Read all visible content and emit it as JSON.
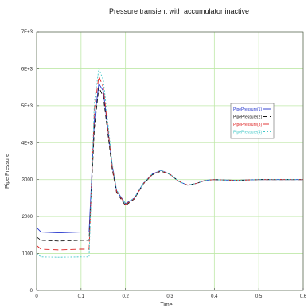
{
  "chart_data": {
    "type": "line",
    "title": "Pressure transient with accumulator inactive",
    "xlabel": "Time",
    "ylabel": "Pipe Pressure",
    "xlim": [
      0,
      0.6
    ],
    "ylim": [
      0,
      7000
    ],
    "x_ticks": [
      0,
      0.1,
      0.2,
      0.3,
      0.4,
      0.5,
      0.6
    ],
    "x_tick_labels": [
      "0",
      "0.1",
      "0.2",
      "0.3",
      "0.4",
      "0.5",
      "0.6"
    ],
    "y_ticks": [
      0,
      1000,
      2000,
      3000,
      4000,
      5000,
      6000,
      7000
    ],
    "y_tick_labels": [
      "0",
      "1000",
      "2000",
      "3000",
      "4E+3",
      "5E+3",
      "6E+3",
      "7E+3"
    ],
    "grid": true,
    "grid_color": "#bfe8a8",
    "legend_position": "right",
    "x": [
      0,
      0.01,
      0.05,
      0.1,
      0.118,
      0.13,
      0.14,
      0.15,
      0.16,
      0.17,
      0.18,
      0.2,
      0.22,
      0.24,
      0.26,
      0.28,
      0.3,
      0.32,
      0.34,
      0.36,
      0.38,
      0.4,
      0.42,
      0.45,
      0.5,
      0.55,
      0.6
    ],
    "series": [
      {
        "name": "PipePressure(1)",
        "color": "#2233cc",
        "dash": "",
        "values": [
          1700,
          1580,
          1560,
          1580,
          1580,
          4600,
          5600,
          5400,
          4400,
          3400,
          2700,
          2350,
          2500,
          2900,
          3150,
          3250,
          3150,
          2950,
          2850,
          2900,
          2980,
          3000,
          2990,
          2980,
          3000,
          3000,
          3000
        ]
      },
      {
        "name": "PipePressure(2)",
        "color": "#111111",
        "dash": "5 3",
        "values": [
          1450,
          1360,
          1340,
          1360,
          1360,
          4400,
          5500,
          5250,
          4300,
          3300,
          2650,
          2300,
          2480,
          2880,
          3130,
          3230,
          3140,
          2950,
          2850,
          2900,
          2980,
          3000,
          2990,
          2980,
          3000,
          3000,
          3000
        ]
      },
      {
        "name": "PipePressure(3)",
        "color": "#dd2222",
        "dash": "7 4",
        "values": [
          1220,
          1120,
          1100,
          1120,
          1120,
          4900,
          5800,
          5500,
          4450,
          3380,
          2680,
          2330,
          2490,
          2890,
          3140,
          3240,
          3150,
          2950,
          2850,
          2900,
          2980,
          3000,
          2990,
          2980,
          3000,
          3000,
          3000
        ]
      },
      {
        "name": "PipePressure(4)",
        "color": "#44c8c8",
        "dash": "2 2",
        "values": [
          1000,
          910,
          900,
          910,
          910,
          5100,
          6000,
          5700,
          4600,
          3450,
          2720,
          2350,
          2500,
          2900,
          3150,
          3250,
          3150,
          2950,
          2850,
          2900,
          2980,
          3000,
          2990,
          2980,
          3000,
          3000,
          3000
        ]
      }
    ]
  }
}
